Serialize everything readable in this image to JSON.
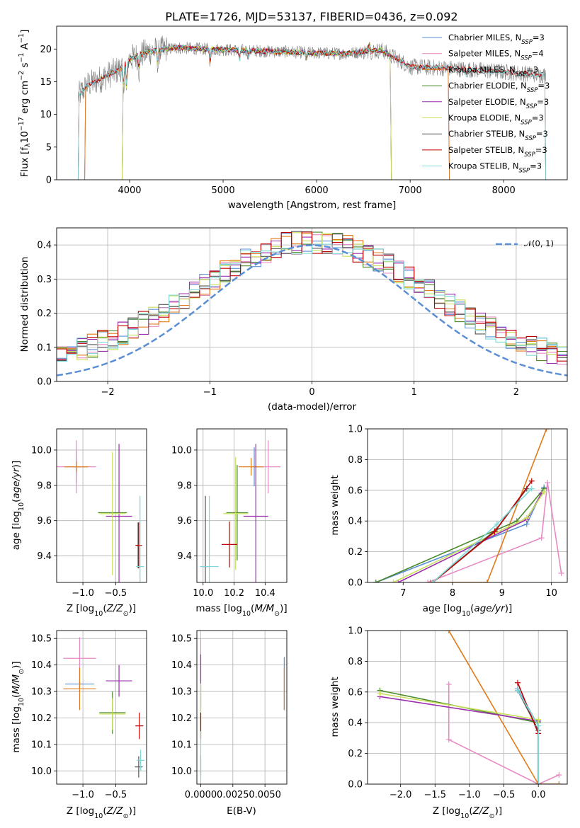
{
  "figure_title": "PLATE=1726, MJD=53137, FIBERID=0436, z=0.092",
  "colors": {
    "Chabrier MILES": "#5b8fd4",
    "Salpeter MILES": "#e78ac3",
    "Kroupa MILES": "#e07b1a",
    "Chabrier ELODIE": "#4a8a2a",
    "Salpeter ELODIE": "#9b2fae",
    "Kroupa ELODIE": "#c8e05a",
    "Chabrier STELIB": "#555555",
    "Salpeter STELIB": "#c00000",
    "Kroupa STELIB": "#7fd8d8",
    "gauss": "#5b8fd4",
    "grid": "#b0b0b0"
  },
  "chart_data": [
    {
      "id": "spectrum",
      "type": "line",
      "title": "PLATE=1726, MJD=53137, FIBERID=0436, z=0.092",
      "xlabel": "wavelength [Angstrom, rest frame]",
      "ylabel": "Flux [f_λ10^-17 erg cm^-2 s^-1 A^-1]",
      "xlim": [
        3220,
        8680
      ],
      "ylim": [
        0,
        23.5
      ],
      "xticks": [
        "4000",
        "5000",
        "6000",
        "7000",
        "8000"
      ],
      "yticks": [
        "0",
        "5",
        "10",
        "15",
        "20"
      ],
      "grid": false,
      "legend_position": "top-right",
      "legend": [
        "Chabrier MILES, N_SSP=3",
        "Salpeter MILES, N_SSP=4",
        "Kroupa MILES, N_SSP=3",
        "Chabrier ELODIE, N_SSP=3",
        "Salpeter ELODIE, N_SSP=3",
        "Kroupa ELODIE, N_SSP=3",
        "Chabrier STELIB, N_SSP=3",
        "Salpeter STELIB, N_SSP=3",
        "Kroupa STELIB, N_SSP=3"
      ],
      "data_spectrum": {
        "x_range": [
          3450,
          8450
        ],
        "continuum_points": [
          [
            3450,
            12.8
          ],
          [
            3550,
            14.5
          ],
          [
            3700,
            15.5
          ],
          [
            3900,
            17.0
          ],
          [
            4000,
            18.5
          ],
          [
            4200,
            19.6
          ],
          [
            4500,
            20.2
          ],
          [
            4800,
            20.0
          ],
          [
            5200,
            19.8
          ],
          [
            5600,
            19.6
          ],
          [
            6000,
            19.4
          ],
          [
            6300,
            19.3
          ],
          [
            6500,
            19.6
          ],
          [
            6700,
            19.8
          ],
          [
            7000,
            17.3
          ],
          [
            7500,
            17.0
          ],
          [
            8000,
            16.5
          ],
          [
            8450,
            16.0
          ]
        ]
      },
      "model_ranges": {
        "MILES": [
          3520,
          7420
        ],
        "ELODIE": [
          3920,
          6800
        ],
        "STELIB": [
          3450,
          8450
        ]
      },
      "features": [
        [
          3934,
          -4.5
        ],
        [
          3968,
          -4.5
        ],
        [
          4102,
          -2.5
        ],
        [
          4304,
          -2.5
        ],
        [
          4861,
          -2.0
        ],
        [
          5175,
          -1.6
        ],
        [
          5270,
          -1.0
        ],
        [
          5890,
          -1.2
        ],
        [
          6563,
          1.3
        ],
        [
          7600,
          -0.9
        ]
      ]
    },
    {
      "id": "residuals",
      "type": "line",
      "xlabel": "(data-model)/error",
      "ylabel": "Normed distribution",
      "xlim": [
        -2.5,
        2.5
      ],
      "ylim": [
        0,
        0.45
      ],
      "xticks": [
        "−2",
        "−1",
        "0",
        "1",
        "2"
      ],
      "yticks": [
        "0.0",
        "0.1",
        "0.2",
        "0.3",
        "0.4"
      ],
      "grid": true,
      "legend_position": "top-right",
      "legend": [
        "𝒩(0, 1)"
      ],
      "gauss": {
        "mean": 0,
        "sigma": 1
      },
      "bins": {
        "start": -2.5,
        "width": 0.1,
        "count": 50
      }
    },
    {
      "id": "age-vs-Z",
      "type": "scatter",
      "xlabel": "Z [log10(Z/Z⊙)]",
      "ylabel": "age  [log10(age/yr)]",
      "xlim": [
        -1.4,
        -0.03
      ],
      "ylim": [
        9.25,
        10.12
      ],
      "xticks": [
        "−1.0",
        "−0.5"
      ],
      "yticks": [
        "9.4",
        "9.6",
        "9.8",
        "10.0"
      ],
      "grid": true,
      "points": [
        {
          "model": "Chabrier MILES",
          "x": -1.1,
          "y": 9.905,
          "xerr": 0.18,
          "yerr": 0.09
        },
        {
          "model": "Salpeter MILES",
          "x": -1.1,
          "y": 9.905,
          "xerr": 0.3,
          "yerr": 0.15
        },
        {
          "model": "Kroupa MILES",
          "x": -1.1,
          "y": 9.905,
          "xerr": 0.18,
          "yerr": 0.03
        },
        {
          "model": "Chabrier ELODIE",
          "x": -0.55,
          "y": 9.645,
          "xerr": 0.22,
          "yerr": 0.01
        },
        {
          "model": "Salpeter ELODIE",
          "x": -0.45,
          "y": 9.625,
          "xerr": 0.2,
          "yerr": 0.41
        },
        {
          "model": "Kroupa ELODIE",
          "x": -0.55,
          "y": 9.64,
          "xerr": 0.2,
          "yerr": 0.35
        },
        {
          "model": "Chabrier STELIB",
          "x": -0.16,
          "y": 9.46,
          "xerr": 0.02,
          "yerr": 0.13
        },
        {
          "model": "Salpeter STELIB",
          "x": -0.15,
          "y": 9.46,
          "xerr": 0.05,
          "yerr": 0.13
        },
        {
          "model": "Kroupa STELIB",
          "x": -0.13,
          "y": 9.34,
          "xerr": 0.06,
          "yerr": 0.4
        }
      ]
    },
    {
      "id": "age-vs-mass",
      "type": "scatter",
      "xlabel": "mass [log10(M/M⊙)]",
      "ylabel": "",
      "xlim": [
        9.96,
        10.54
      ],
      "ylim": [
        9.25,
        10.12
      ],
      "xticks": [
        "10.0",
        "10.2",
        "10.4"
      ],
      "yticks": [
        "9.4",
        "9.6",
        "9.8",
        "10.0"
      ],
      "grid": true,
      "points": [
        {
          "model": "Chabrier MILES",
          "x": 10.33,
          "y": 9.905,
          "xerr": 0.02,
          "yerr": 0.11
        },
        {
          "model": "Salpeter MILES",
          "x": 10.42,
          "y": 9.905,
          "xerr": 0.08,
          "yerr": 0.15
        },
        {
          "model": "Kroupa MILES",
          "x": 10.31,
          "y": 9.905,
          "xerr": 0.08,
          "yerr": 0.05
        },
        {
          "model": "Chabrier ELODIE",
          "x": 10.22,
          "y": 9.645,
          "xerr": 0.07,
          "yerr": 0.27
        },
        {
          "model": "Salpeter ELODIE",
          "x": 10.34,
          "y": 9.625,
          "xerr": 0.08,
          "yerr": 0.41
        },
        {
          "model": "Kroupa ELODIE",
          "x": 10.21,
          "y": 9.64,
          "xerr": 0.08,
          "yerr": 0.32
        },
        {
          "model": "Chabrier STELIB",
          "x": 10.015,
          "y": 9.34,
          "xerr": 0.02,
          "yerr": 0.4
        },
        {
          "model": "Salpeter STELIB",
          "x": 10.17,
          "y": 9.465,
          "xerr": 0.05,
          "yerr": 0.13
        },
        {
          "model": "Kroupa STELIB",
          "x": 10.04,
          "y": 9.34,
          "xerr": 0.06,
          "yerr": 0.4
        }
      ]
    },
    {
      "id": "mass-weight-vs-age",
      "type": "line",
      "xlabel": "age  [log10(age/yr)]",
      "ylabel": "mass weight",
      "xlim": [
        6.28,
        10.32
      ],
      "ylim": [
        0,
        1.0
      ],
      "xticks": [
        "7",
        "8",
        "9",
        "10"
      ],
      "yticks": [
        "0.0",
        "0.2",
        "0.4",
        "0.6",
        "0.8",
        "1.0"
      ],
      "grid": true,
      "series": [
        {
          "model": "Chabrier MILES",
          "x": [
            6.45,
            9.5,
            9.85
          ],
          "y": [
            0.0,
            0.38,
            0.62
          ]
        },
        {
          "model": "Salpeter MILES",
          "x": [
            7.5,
            9.8,
            9.92,
            10.2
          ],
          "y": [
            0.0,
            0.29,
            0.65,
            0.06
          ]
        },
        {
          "model": "Kroupa MILES",
          "x": [
            7.55,
            8.7,
            9.9
          ],
          "y": [
            0.0,
            0.0,
            1.0
          ]
        },
        {
          "model": "Chabrier ELODIE",
          "x": [
            6.45,
            9.3,
            9.85
          ],
          "y": [
            0.0,
            0.4,
            0.61
          ]
        },
        {
          "model": "Salpeter ELODIE",
          "x": [
            6.9,
            9.5,
            9.8
          ],
          "y": [
            0.0,
            0.41,
            0.58
          ]
        },
        {
          "model": "Kroupa ELODIE",
          "x": [
            6.8,
            9.5,
            9.85
          ],
          "y": [
            0.0,
            0.42,
            0.59
          ]
        },
        {
          "model": "Chabrier STELIB",
          "x": [
            7.6,
            8.9,
            9.5
          ],
          "y": [
            0.0,
            0.35,
            0.61
          ]
        },
        {
          "model": "Salpeter STELIB",
          "x": [
            7.6,
            8.85,
            9.6
          ],
          "y": [
            0.0,
            0.33,
            0.66
          ]
        },
        {
          "model": "Kroupa STELIB",
          "x": [
            7.6,
            8.9,
            9.6
          ],
          "y": [
            0.0,
            0.38,
            0.61
          ]
        }
      ]
    },
    {
      "id": "mass-vs-Z",
      "type": "scatter",
      "xlabel": "Z [log10(Z/Z⊙)]",
      "ylabel": "mass [log10(M/M⊙)]",
      "xlim": [
        -1.4,
        -0.03
      ],
      "ylim": [
        9.95,
        10.53
      ],
      "xticks": [
        "−1.0",
        "−0.5"
      ],
      "yticks": [
        "10.0",
        "10.1",
        "10.2",
        "10.3",
        "10.4",
        "10.5"
      ],
      "grid": true,
      "points": [
        {
          "model": "Chabrier MILES",
          "x": -1.05,
          "y": 10.328,
          "xerr": 0.22,
          "yerr": 0.015
        },
        {
          "model": "Salpeter MILES",
          "x": -1.05,
          "y": 10.425,
          "xerr": 0.25,
          "yerr": 0.08
        },
        {
          "model": "Kroupa MILES",
          "x": -1.05,
          "y": 10.31,
          "xerr": 0.25,
          "yerr": 0.08
        },
        {
          "model": "Chabrier ELODIE",
          "x": -0.55,
          "y": 10.22,
          "xerr": 0.2,
          "yerr": 0.08
        },
        {
          "model": "Salpeter ELODIE",
          "x": -0.45,
          "y": 10.34,
          "xerr": 0.2,
          "yerr": 0.06
        },
        {
          "model": "Kroupa ELODIE",
          "x": -0.55,
          "y": 10.215,
          "xerr": 0.2,
          "yerr": 0.06
        },
        {
          "model": "Chabrier STELIB",
          "x": -0.15,
          "y": 10.015,
          "xerr": 0.06,
          "yerr": 0.04
        },
        {
          "model": "Salpeter STELIB",
          "x": -0.14,
          "y": 10.17,
          "xerr": 0.06,
          "yerr": 0.05
        },
        {
          "model": "Kroupa STELIB",
          "x": -0.12,
          "y": 10.04,
          "xerr": 0.06,
          "yerr": 0.04
        }
      ]
    },
    {
      "id": "mass-vs-ebv",
      "type": "scatter",
      "xlabel": "E(B-V)",
      "ylabel": "",
      "xlim": [
        -0.0003,
        0.0067
      ],
      "ylim": [
        9.95,
        10.53
      ],
      "xticks": [
        "0.0000",
        "0.0025",
        "0.0050"
      ],
      "yticks": [
        "10.0",
        "10.1",
        "10.2",
        "10.3",
        "10.4",
        "10.5"
      ],
      "grid": true,
      "points": [
        {
          "model": "Chabrier MILES",
          "x": 0.0065,
          "y": 10.33,
          "xerr": 0,
          "yerr": 0.1
        },
        {
          "model": "Salpeter MILES",
          "x": 0.0,
          "y": 10.42,
          "xerr": 0,
          "yerr": 0.08
        },
        {
          "model": "Kroupa MILES",
          "x": 0.0065,
          "y": 10.31,
          "xerr": 0,
          "yerr": 0.08
        },
        {
          "model": "Chabrier ELODIE",
          "x": 0.0,
          "y": 10.22,
          "xerr": 0,
          "yerr": 0.1
        },
        {
          "model": "Salpeter ELODIE",
          "x": 0.0,
          "y": 10.34,
          "xerr": 0,
          "yerr": 0.1
        },
        {
          "model": "Kroupa ELODIE",
          "x": 0.0,
          "y": 10.25,
          "xerr": 0,
          "yerr": 0.08
        },
        {
          "model": "Chabrier STELIB",
          "x": 0.0,
          "y": 10.02,
          "xerr": 0,
          "yerr": 0.04
        },
        {
          "model": "Salpeter STELIB",
          "x": 0.0,
          "y": 10.17,
          "xerr": 0,
          "yerr": 0.05
        },
        {
          "model": "Kroupa STELIB",
          "x": 0.0,
          "y": 10.05,
          "xerr": 0,
          "yerr": 0.1
        }
      ]
    },
    {
      "id": "mass-weight-vs-Z",
      "type": "line",
      "xlabel": "Z [log10(Z/Z⊙)]",
      "ylabel": "mass weight",
      "xlim": [
        -2.48,
        0.42
      ],
      "ylim": [
        0,
        1.0
      ],
      "xticks": [
        "−2.0",
        "−1.5",
        "−1.0",
        "−0.5",
        "0.0"
      ],
      "yticks": [
        "0.0",
        "0.2",
        "0.4",
        "0.6",
        "0.8",
        "1.0"
      ],
      "grid": true,
      "series": [
        {
          "model": "Chabrier MILES",
          "x": [
            -0.3,
            0.0,
            0.0
          ],
          "y": [
            0.62,
            0.38,
            0.0
          ]
        },
        {
          "model": "Salpeter MILES",
          "x": [
            -1.3,
            -1.3,
            0.0,
            0.3
          ],
          "y": [
            0.65,
            0.29,
            0.0,
            0.06
          ]
        },
        {
          "model": "Kroupa MILES",
          "x": [
            -1.3,
            0.0,
            0.3
          ],
          "y": [
            1.0,
            0.0,
            0.0
          ]
        },
        {
          "model": "Chabrier ELODIE",
          "x": [
            -2.3,
            0.0,
            0.0
          ],
          "y": [
            0.61,
            0.4,
            0.0
          ]
        },
        {
          "model": "Salpeter ELODIE",
          "x": [
            -2.3,
            0.0,
            0.0
          ],
          "y": [
            0.57,
            0.41,
            0.0
          ]
        },
        {
          "model": "Kroupa ELODIE",
          "x": [
            -2.3,
            0.0,
            0.0
          ],
          "y": [
            0.59,
            0.42,
            0.0
          ]
        },
        {
          "model": "Chabrier STELIB",
          "x": [
            -0.3,
            0.0,
            0.0
          ],
          "y": [
            0.61,
            0.35,
            0.0
          ]
        },
        {
          "model": "Salpeter STELIB",
          "x": [
            -0.3,
            0.0,
            0.0
          ],
          "y": [
            0.66,
            0.33,
            0.0
          ]
        },
        {
          "model": "Kroupa STELIB",
          "x": [
            -0.3,
            0.0,
            0.0
          ],
          "y": [
            0.61,
            0.38,
            0.0
          ]
        }
      ]
    }
  ]
}
